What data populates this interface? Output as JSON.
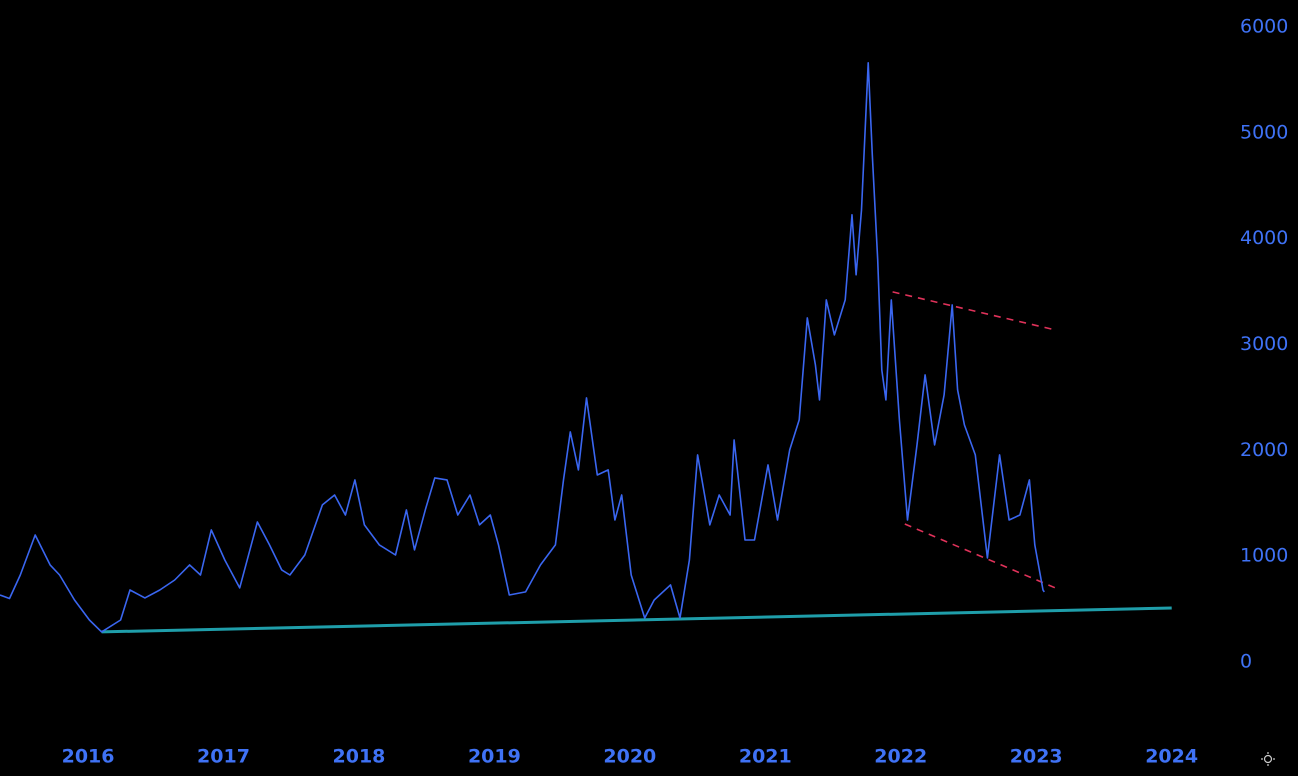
{
  "chart_data": {
    "type": "line",
    "xlim": [
      2015.35,
      2024.32
    ],
    "xticks": [
      2016,
      2017,
      2018,
      2019,
      2020,
      2021,
      2022,
      2023,
      2024
    ],
    "ylim": [
      -690,
      6255
    ],
    "yticks": [
      0,
      1000,
      2000,
      3000,
      4000,
      5000,
      6000
    ],
    "grid": false,
    "series": [
      {
        "color": "#3a66f0",
        "x": [
          2015.35,
          2015.42,
          2015.5,
          2015.61,
          2015.72,
          2015.79,
          2015.9,
          2016.01,
          2016.1,
          2016.24,
          2016.31,
          2016.42,
          2016.53,
          2016.64,
          2016.75,
          2016.83,
          2016.91,
          2017.01,
          2017.12,
          2017.25,
          2017.34,
          2017.43,
          2017.49,
          2017.6,
          2017.73,
          2017.82,
          2017.9,
          2017.97,
          2018.04,
          2018.15,
          2018.27,
          2018.35,
          2018.41,
          2018.49,
          2018.56,
          2018.65,
          2018.73,
          2018.82,
          2018.89,
          2018.97,
          2019.03,
          2019.11,
          2019.23,
          2019.34,
          2019.45,
          2019.51,
          2019.56,
          2019.62,
          2019.68,
          2019.76,
          2019.84,
          2019.89,
          2019.94,
          2020.01,
          2020.11,
          2020.18,
          2020.3,
          2020.37,
          2020.44,
          2020.5,
          2020.59,
          2020.66,
          2020.74,
          2020.77,
          2020.85,
          2020.92,
          2021.02,
          2021.09,
          2021.18,
          2021.25,
          2021.31,
          2021.37,
          2021.4,
          2021.45,
          2021.51,
          2021.59,
          2021.64,
          2021.67,
          2021.71,
          2021.76,
          2021.79,
          2021.83,
          2021.86,
          2021.89,
          2021.93,
          2021.99,
          2022.05,
          2022.12,
          2022.18,
          2022.25,
          2022.32,
          2022.38,
          2022.42,
          2022.47,
          2022.55,
          2022.64,
          2022.73,
          2022.8,
          2022.88,
          2022.95,
          2022.99,
          2023.05,
          2023.06
        ],
        "values": [
          633,
          600,
          822,
          1200,
          917,
          822,
          586,
          397,
          284,
          397,
          680,
          605,
          680,
          775,
          917,
          822,
          1248,
          964,
          700,
          1323,
          1106,
          870,
          822,
          1011,
          1484,
          1578,
          1389,
          1720,
          1295,
          1106,
          1011,
          1437,
          1059,
          1437,
          1739,
          1720,
          1389,
          1578,
          1295,
          1389,
          1106,
          633,
          662,
          917,
          1106,
          1720,
          2174,
          1815,
          2495,
          1767,
          1815,
          1342,
          1578,
          822,
          416,
          586,
          728,
          416,
          964,
          1957,
          1295,
          1578,
          1389,
          2098,
          1153,
          1153,
          1862,
          1342,
          2004,
          2287,
          3251,
          2807,
          2476,
          3421,
          3091,
          3421,
          4225,
          3658,
          4272,
          5662,
          4792,
          3800,
          2760,
          2476,
          3421,
          2287,
          1342,
          2051,
          2713,
          2051,
          2524,
          3374,
          2571,
          2240,
          1957,
          983,
          1957,
          1342,
          1389,
          1720,
          1106,
          680,
          662
        ]
      }
    ],
    "trend_lines": [
      {
        "color": "#1f9eaa",
        "dash": false,
        "x": [
          2016.1,
          2024.0
        ],
        "values": [
          284,
          510
        ]
      },
      {
        "color": "#e0325a",
        "dash": true,
        "x": [
          2021.94,
          2023.14
        ],
        "values": [
          3497,
          3138
        ]
      },
      {
        "color": "#e0325a",
        "dash": true,
        "x": [
          2022.03,
          2023.16
        ],
        "values": [
          1304,
          690
        ]
      }
    ]
  }
}
